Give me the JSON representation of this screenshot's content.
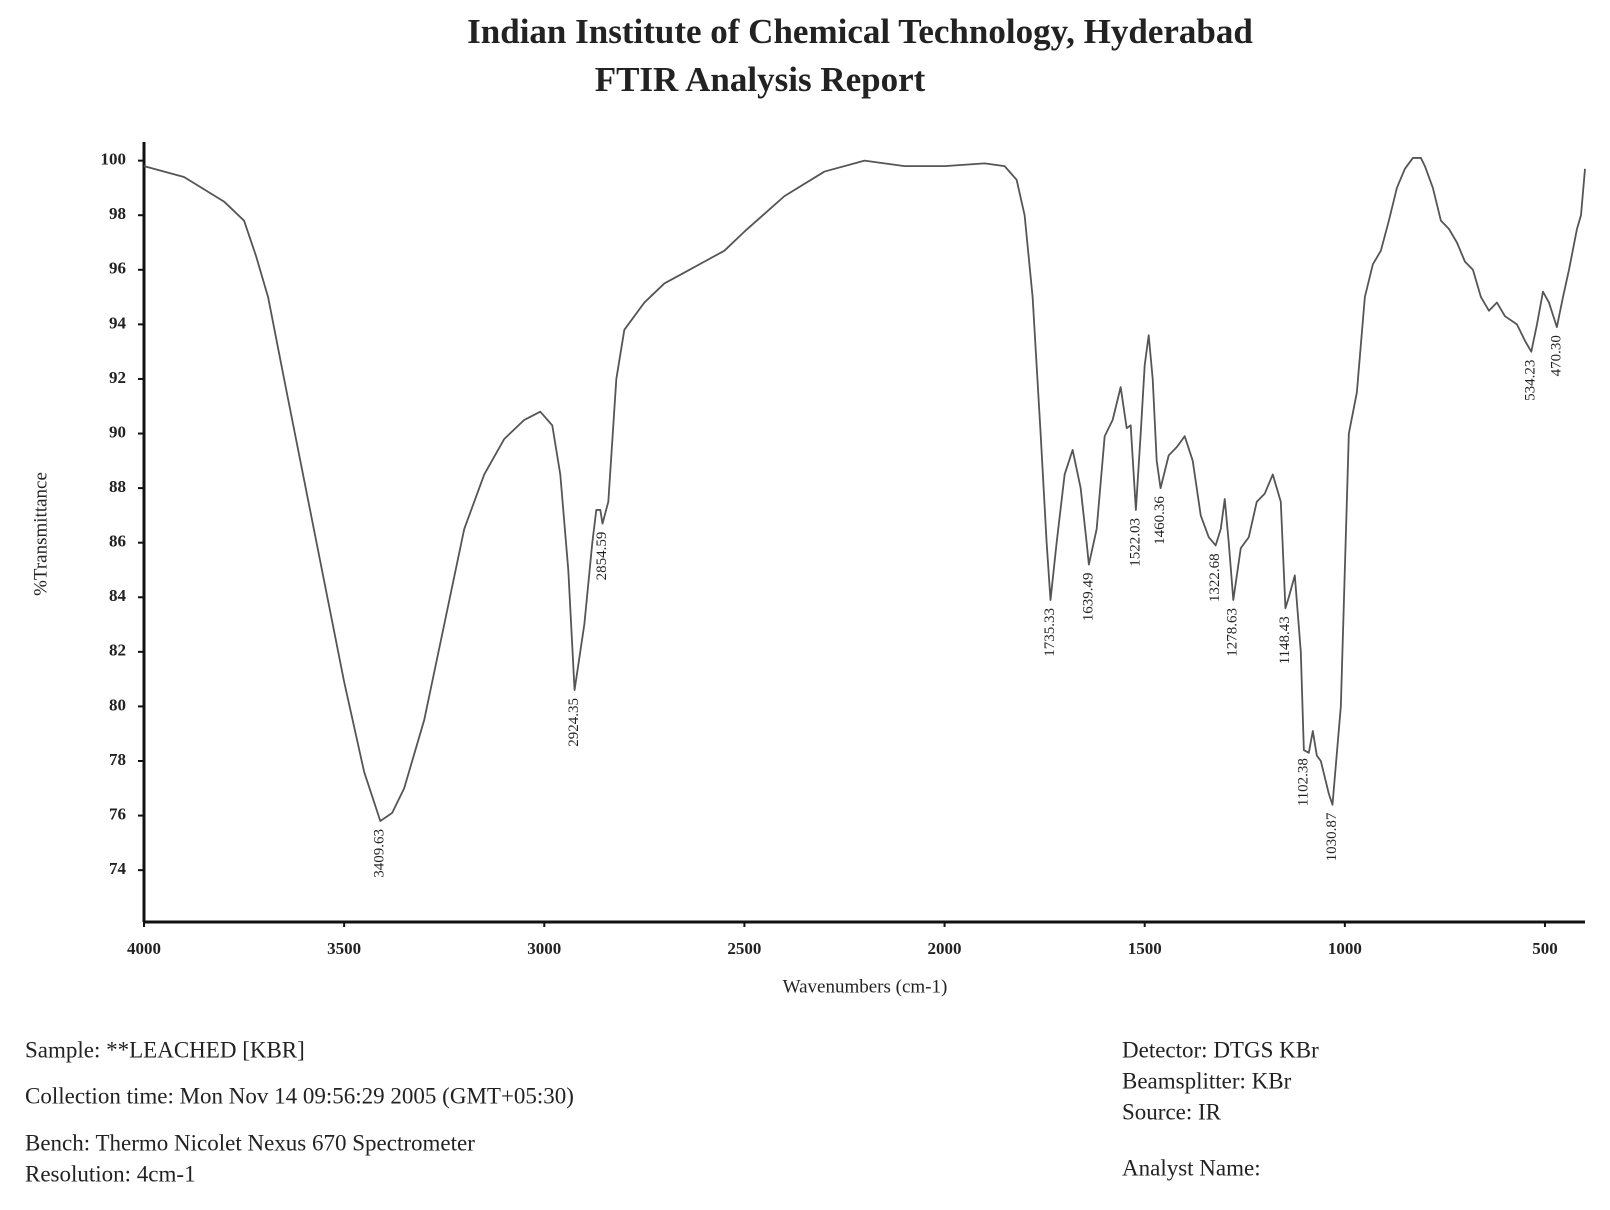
{
  "chart_data": {
    "type": "line",
    "title": "Indian Institute of Chemical Technology, Hyderabad",
    "subtitle": "FTIR Analysis Report",
    "x_label": "Wavenumbers (cm-1)",
    "y_label": "%Transmittance",
    "xlim": [
      4000,
      400
    ],
    "ylim": [
      72.1,
      100.5
    ],
    "xticks": [
      4000,
      3500,
      3000,
      2500,
      2000,
      1500,
      1000,
      500
    ],
    "yticks": [
      74,
      76,
      78,
      80,
      82,
      84,
      86,
      88,
      90,
      92,
      94,
      96,
      98,
      100
    ],
    "x": [
      4000,
      3900,
      3800,
      3750,
      3720,
      3690,
      3650,
      3600,
      3550,
      3500,
      3450,
      3409.63,
      3380,
      3350,
      3300,
      3250,
      3200,
      3150,
      3100,
      3050,
      3010,
      2980,
      2960,
      2940,
      2924.35,
      2900,
      2880,
      2870,
      2860,
      2854.59,
      2840,
      2820,
      2800,
      2750,
      2700,
      2650,
      2600,
      2550,
      2500,
      2400,
      2300,
      2200,
      2100,
      2000,
      1900,
      1850,
      1820,
      1800,
      1780,
      1760,
      1745,
      1735.33,
      1720,
      1700,
      1680,
      1660,
      1645,
      1639.49,
      1620,
      1600,
      1580,
      1560,
      1545,
      1535,
      1522.03,
      1510,
      1500,
      1490,
      1480,
      1470,
      1460.36,
      1440,
      1420,
      1400,
      1380,
      1360,
      1340,
      1322.68,
      1310,
      1300,
      1290,
      1278.63,
      1260,
      1240,
      1220,
      1200,
      1180,
      1160,
      1148.43,
      1140,
      1125,
      1110,
      1102.38,
      1090,
      1080,
      1070,
      1060,
      1040,
      1030.87,
      1010,
      1000,
      990,
      970,
      950,
      930,
      910,
      890,
      870,
      850,
      830,
      810,
      800,
      780,
      760,
      740,
      720,
      700,
      680,
      660,
      640,
      620,
      600,
      570,
      550,
      534.23,
      520,
      505,
      490,
      470.3,
      455,
      440,
      420,
      410,
      400
    ],
    "series": [
      {
        "color": "#555555",
        "values": [
          99.8,
          99.4,
          98.5,
          97.8,
          96.5,
          95,
          92,
          88.3,
          84.6,
          80.9,
          77.6,
          75.8,
          76.1,
          77,
          79.5,
          83,
          86.5,
          88.5,
          89.8,
          90.5,
          90.8,
          90.3,
          88.5,
          85,
          80.6,
          83,
          86,
          87.2,
          87.2,
          86.7,
          87.5,
          92,
          93.8,
          94.8,
          95.5,
          95.9,
          96.3,
          96.7,
          97.4,
          98.7,
          99.6,
          100,
          99.8,
          99.8,
          99.9,
          99.8,
          99.3,
          98,
          95,
          90,
          86,
          83.9,
          86,
          88.5,
          89.4,
          88,
          86,
          85.2,
          86.5,
          89.9,
          90.5,
          91.7,
          90.2,
          90.3,
          87.2,
          90,
          92.5,
          93.6,
          92,
          89,
          88,
          89.2,
          89.5,
          89.9,
          89,
          87,
          86.2,
          85.9,
          86.5,
          87.6,
          86,
          83.9,
          85.8,
          86.2,
          87.5,
          87.8,
          88.5,
          87.5,
          83.6,
          84,
          84.8,
          82,
          78.4,
          78.3,
          79.1,
          78.2,
          78,
          76.8,
          76.4,
          80,
          85,
          90,
          91.5,
          95,
          96.2,
          96.7,
          97.8,
          99,
          99.7,
          100.1,
          100.1,
          99.8,
          99,
          97.8,
          97.5,
          97,
          96.3,
          96,
          95,
          94.5,
          94.8,
          94.3,
          94,
          93.4,
          93,
          94,
          95.2,
          94.8,
          93.9,
          95,
          96,
          97.5,
          98,
          99.7
        ]
      }
    ],
    "annotations": [
      {
        "x": 3409.63,
        "label": "3409.63"
      },
      {
        "x": 2924.35,
        "label": "2924.35"
      },
      {
        "x": 2854.59,
        "label": "2854.59"
      },
      {
        "x": 1735.33,
        "label": "1735.33"
      },
      {
        "x": 1639.49,
        "label": "1639.49"
      },
      {
        "x": 1522.03,
        "label": "1522.03"
      },
      {
        "x": 1460.36,
        "label": "1460.36"
      },
      {
        "x": 1322.68,
        "label": "1322.68"
      },
      {
        "x": 1278.63,
        "label": "1278.63"
      },
      {
        "x": 1148.43,
        "label": "1148.43"
      },
      {
        "x": 1102.38,
        "label": "1102.38"
      },
      {
        "x": 1030.87,
        "label": "1030.87"
      },
      {
        "x": 534.23,
        "label": "534.23"
      },
      {
        "x": 470.3,
        "label": "470.30"
      }
    ]
  },
  "report": {
    "left": [
      "Sample:  **LEACHED [KBR]",
      "Collection time: Mon Nov 14 09:56:29 2005 (GMT+05:30)",
      "Bench: Thermo Nicolet Nexus 670 Spectrometer",
      "Resolution:  4cm-1"
    ],
    "right": [
      "Detector:  DTGS KBr",
      "Beamsplitter:  KBr",
      "Source:  IR",
      "Analyst Name:"
    ]
  }
}
